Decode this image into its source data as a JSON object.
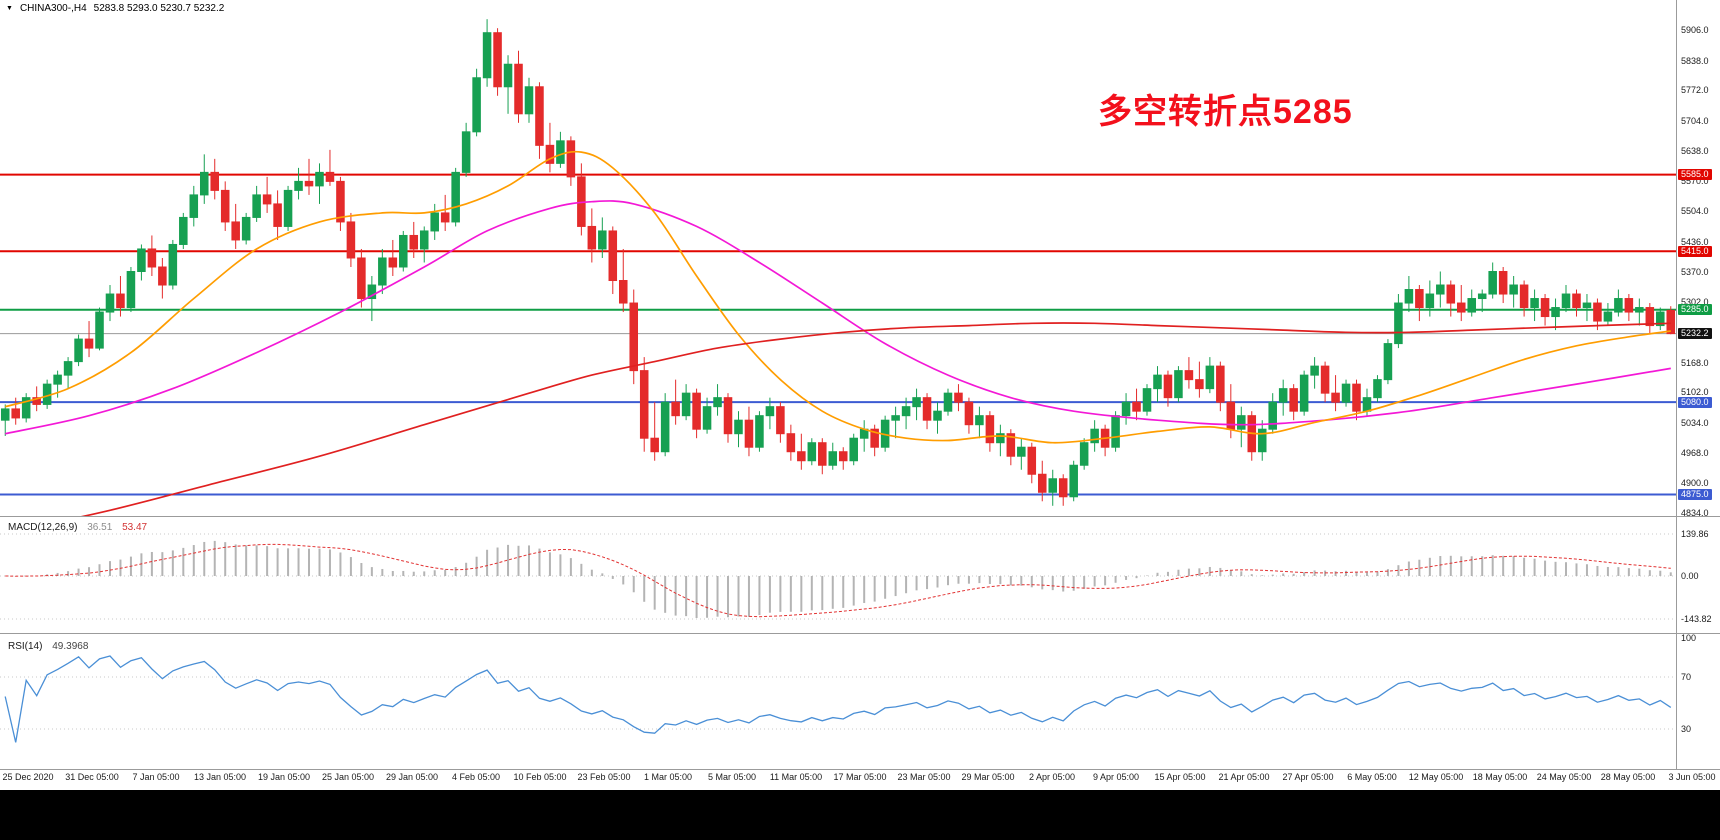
{
  "symbol_info": {
    "symbol_timeframe": "CHINA300-,H4",
    "ohlc_text": "5283.8 5293.0 5230.7 5232.2"
  },
  "annotation": {
    "text": "多空转折点5285",
    "color": "#f3101c"
  },
  "chart_data": {
    "type": "candlestick",
    "symbol": "CHINA300-",
    "timeframe": "H4",
    "ohlc_current": {
      "open": 5283.8,
      "high": 5293.0,
      "low": 5230.7,
      "close": 5232.2
    },
    "colors": {
      "up": "#17a052",
      "down": "#e42b2b",
      "ma_fast": "#ff9d00",
      "ma_mid": "#f318d6",
      "ma_slow": "#e02020",
      "rsi_line": "#4a8fd6",
      "macd_hist": "#b4b4b4",
      "macd_signal": "#e23333"
    },
    "y_axis": {
      "range": [
        4834.0,
        5906.0
      ],
      "ticks": [
        "5906.0",
        "5838.0",
        "5772.0",
        "5704.0",
        "5638.0",
        "5570.0",
        "5504.0",
        "5436.0",
        "5370.0",
        "5302.0",
        "5168.0",
        "5102.0",
        "5034.0",
        "4968.0",
        "4900.0",
        "4834.0"
      ]
    },
    "x_axis": {
      "labels": [
        "25 Dec 2020",
        "31 Dec 05:00",
        "7 Jan 05:00",
        "13 Jan 05:00",
        "19 Jan 05:00",
        "25 Jan 05:00",
        "29 Jan 05:00",
        "4 Feb 05:00",
        "10 Feb 05:00",
        "23 Feb 05:00",
        "1 Mar 05:00",
        "5 Mar 05:00",
        "11 Mar 05:00",
        "17 Mar 05:00",
        "23 Mar 05:00",
        "29 Mar 05:00",
        "2 Apr 05:00",
        "9 Apr 05:00",
        "15 Apr 05:00",
        "21 Apr 05:00",
        "27 Apr 05:00",
        "6 May 05:00",
        "12 May 05:00",
        "18 May 05:00",
        "24 May 05:00",
        "28 May 05:00",
        "3 Jun 05:00"
      ]
    },
    "levels": [
      {
        "price": 5585.0,
        "label": "5585.0",
        "color": "#e10600",
        "width": 2
      },
      {
        "price": 5415.0,
        "label": "5415.0",
        "color": "#e10600",
        "width": 2
      },
      {
        "price": 5285.0,
        "label": "5285.0",
        "color": "#0f9d45",
        "width": 2
      },
      {
        "price": 5080.0,
        "label": "5080.0",
        "color": "#3c5bd2",
        "width": 2
      },
      {
        "price": 4875.0,
        "label": "4875.0",
        "color": "#3c5bd2",
        "width": 2
      }
    ],
    "current_price": {
      "value": 5232.2,
      "label": "5232.2",
      "line_color": "#9a9a9a",
      "tag_color": "#111111"
    },
    "candles": [
      [
        5040,
        5075,
        5005,
        5065
      ],
      [
        5065,
        5090,
        5030,
        5045
      ],
      [
        5045,
        5100,
        5035,
        5090
      ],
      [
        5090,
        5115,
        5060,
        5075
      ],
      [
        5075,
        5130,
        5065,
        5120
      ],
      [
        5120,
        5150,
        5090,
        5140
      ],
      [
        5140,
        5180,
        5110,
        5170
      ],
      [
        5170,
        5230,
        5160,
        5220
      ],
      [
        5220,
        5260,
        5180,
        5200
      ],
      [
        5200,
        5290,
        5195,
        5280
      ],
      [
        5280,
        5340,
        5260,
        5320
      ],
      [
        5320,
        5360,
        5270,
        5290
      ],
      [
        5290,
        5380,
        5280,
        5370
      ],
      [
        5370,
        5430,
        5350,
        5420
      ],
      [
        5420,
        5450,
        5360,
        5380
      ],
      [
        5380,
        5400,
        5310,
        5340
      ],
      [
        5340,
        5440,
        5330,
        5430
      ],
      [
        5430,
        5500,
        5420,
        5490
      ],
      [
        5490,
        5560,
        5470,
        5540
      ],
      [
        5540,
        5630,
        5520,
        5590
      ],
      [
        5590,
        5620,
        5530,
        5550
      ],
      [
        5550,
        5570,
        5460,
        5480
      ],
      [
        5480,
        5520,
        5420,
        5440
      ],
      [
        5440,
        5500,
        5430,
        5490
      ],
      [
        5490,
        5560,
        5480,
        5540
      ],
      [
        5540,
        5580,
        5500,
        5520
      ],
      [
        5520,
        5550,
        5440,
        5470
      ],
      [
        5470,
        5560,
        5460,
        5550
      ],
      [
        5550,
        5600,
        5530,
        5570
      ],
      [
        5570,
        5620,
        5540,
        5560
      ],
      [
        5560,
        5610,
        5520,
        5590
      ],
      [
        5590,
        5640,
        5560,
        5570
      ],
      [
        5570,
        5580,
        5460,
        5480
      ],
      [
        5480,
        5500,
        5380,
        5400
      ],
      [
        5400,
        5420,
        5290,
        5310
      ],
      [
        5310,
        5360,
        5260,
        5340
      ],
      [
        5340,
        5420,
        5320,
        5400
      ],
      [
        5400,
        5440,
        5360,
        5380
      ],
      [
        5380,
        5460,
        5370,
        5450
      ],
      [
        5450,
        5480,
        5400,
        5420
      ],
      [
        5420,
        5470,
        5390,
        5460
      ],
      [
        5460,
        5520,
        5440,
        5500
      ],
      [
        5500,
        5540,
        5460,
        5480
      ],
      [
        5480,
        5600,
        5470,
        5590
      ],
      [
        5590,
        5700,
        5580,
        5680
      ],
      [
        5680,
        5820,
        5670,
        5800
      ],
      [
        5800,
        5930,
        5780,
        5900
      ],
      [
        5900,
        5910,
        5760,
        5780
      ],
      [
        5780,
        5850,
        5720,
        5830
      ],
      [
        5830,
        5860,
        5700,
        5720
      ],
      [
        5720,
        5800,
        5700,
        5780
      ],
      [
        5780,
        5790,
        5620,
        5650
      ],
      [
        5650,
        5700,
        5590,
        5610
      ],
      [
        5610,
        5680,
        5600,
        5660
      ],
      [
        5660,
        5670,
        5560,
        5580
      ],
      [
        5580,
        5610,
        5450,
        5470
      ],
      [
        5470,
        5510,
        5390,
        5420
      ],
      [
        5420,
        5490,
        5400,
        5460
      ],
      [
        5460,
        5470,
        5320,
        5350
      ],
      [
        5350,
        5420,
        5280,
        5300
      ],
      [
        5300,
        5330,
        5120,
        5150
      ],
      [
        5150,
        5180,
        4970,
        5000
      ],
      [
        5000,
        5080,
        4950,
        4970
      ],
      [
        4970,
        5100,
        4960,
        5080
      ],
      [
        5080,
        5130,
        5030,
        5050
      ],
      [
        5050,
        5120,
        5040,
        5100
      ],
      [
        5100,
        5110,
        5000,
        5020
      ],
      [
        5020,
        5090,
        5010,
        5070
      ],
      [
        5070,
        5120,
        5050,
        5090
      ],
      [
        5090,
        5100,
        4990,
        5010
      ],
      [
        5010,
        5060,
        4980,
        5040
      ],
      [
        5040,
        5070,
        4960,
        4980
      ],
      [
        4980,
        5060,
        4970,
        5050
      ],
      [
        5050,
        5090,
        5020,
        5070
      ],
      [
        5070,
        5080,
        4990,
        5010
      ],
      [
        5010,
        5030,
        4950,
        4970
      ],
      [
        4970,
        5010,
        4930,
        4950
      ],
      [
        4950,
        5000,
        4940,
        4990
      ],
      [
        4990,
        5000,
        4920,
        4940
      ],
      [
        4940,
        4990,
        4930,
        4970
      ],
      [
        4970,
        4980,
        4930,
        4950
      ],
      [
        4950,
        5010,
        4940,
        5000
      ],
      [
        5000,
        5040,
        4970,
        5020
      ],
      [
        5020,
        5030,
        4960,
        4980
      ],
      [
        4980,
        5050,
        4970,
        5040
      ],
      [
        5040,
        5070,
        5000,
        5050
      ],
      [
        5050,
        5090,
        5020,
        5070
      ],
      [
        5070,
        5110,
        5040,
        5090
      ],
      [
        5090,
        5100,
        5020,
        5040
      ],
      [
        5040,
        5080,
        5010,
        5060
      ],
      [
        5060,
        5110,
        5050,
        5100
      ],
      [
        5100,
        5120,
        5060,
        5080
      ],
      [
        5080,
        5090,
        5010,
        5030
      ],
      [
        5030,
        5070,
        5000,
        5050
      ],
      [
        5050,
        5060,
        4970,
        4990
      ],
      [
        4990,
        5030,
        4960,
        5010
      ],
      [
        5010,
        5020,
        4940,
        4960
      ],
      [
        4960,
        5000,
        4930,
        4980
      ],
      [
        4980,
        4990,
        4900,
        4920
      ],
      [
        4920,
        4950,
        4860,
        4880
      ],
      [
        4880,
        4930,
        4850,
        4910
      ],
      [
        4910,
        4920,
        4850,
        4870
      ],
      [
        4870,
        4950,
        4860,
        4940
      ],
      [
        4940,
        5000,
        4930,
        4990
      ],
      [
        4990,
        5040,
        4970,
        5020
      ],
      [
        5020,
        5030,
        4960,
        4980
      ],
      [
        4980,
        5060,
        4970,
        5050
      ],
      [
        5050,
        5100,
        5030,
        5080
      ],
      [
        5080,
        5110,
        5040,
        5060
      ],
      [
        5060,
        5120,
        5050,
        5110
      ],
      [
        5110,
        5160,
        5080,
        5140
      ],
      [
        5140,
        5150,
        5070,
        5090
      ],
      [
        5090,
        5160,
        5080,
        5150
      ],
      [
        5150,
        5180,
        5110,
        5130
      ],
      [
        5130,
        5170,
        5090,
        5110
      ],
      [
        5110,
        5180,
        5100,
        5160
      ],
      [
        5160,
        5170,
        5060,
        5080
      ],
      [
        5080,
        5120,
        5000,
        5020
      ],
      [
        5020,
        5070,
        4980,
        5050
      ],
      [
        5050,
        5060,
        4950,
        4970
      ],
      [
        4970,
        5040,
        4950,
        5020
      ],
      [
        5020,
        5100,
        5010,
        5080
      ],
      [
        5080,
        5130,
        5050,
        5110
      ],
      [
        5110,
        5120,
        5040,
        5060
      ],
      [
        5060,
        5150,
        5050,
        5140
      ],
      [
        5140,
        5180,
        5110,
        5160
      ],
      [
        5160,
        5170,
        5080,
        5100
      ],
      [
        5100,
        5140,
        5060,
        5080
      ],
      [
        5080,
        5130,
        5070,
        5120
      ],
      [
        5120,
        5130,
        5040,
        5060
      ],
      [
        5060,
        5110,
        5050,
        5090
      ],
      [
        5090,
        5140,
        5080,
        5130
      ],
      [
        5130,
        5220,
        5120,
        5210
      ],
      [
        5210,
        5320,
        5200,
        5300
      ],
      [
        5300,
        5360,
        5280,
        5330
      ],
      [
        5330,
        5340,
        5260,
        5290
      ],
      [
        5290,
        5350,
        5270,
        5320
      ],
      [
        5320,
        5370,
        5290,
        5340
      ],
      [
        5340,
        5350,
        5270,
        5300
      ],
      [
        5300,
        5340,
        5260,
        5280
      ],
      [
        5280,
        5330,
        5270,
        5310
      ],
      [
        5310,
        5330,
        5280,
        5320
      ],
      [
        5320,
        5390,
        5310,
        5370
      ],
      [
        5370,
        5380,
        5300,
        5320
      ],
      [
        5320,
        5360,
        5290,
        5340
      ],
      [
        5340,
        5350,
        5270,
        5290
      ],
      [
        5290,
        5330,
        5260,
        5310
      ],
      [
        5310,
        5320,
        5250,
        5270
      ],
      [
        5270,
        5310,
        5240,
        5290
      ],
      [
        5290,
        5340,
        5280,
        5320
      ],
      [
        5320,
        5330,
        5270,
        5290
      ],
      [
        5290,
        5320,
        5260,
        5300
      ],
      [
        5300,
        5310,
        5240,
        5260
      ],
      [
        5260,
        5300,
        5250,
        5280
      ],
      [
        5280,
        5330,
        5270,
        5310
      ],
      [
        5310,
        5320,
        5260,
        5280
      ],
      [
        5280,
        5310,
        5250,
        5290
      ],
      [
        5290,
        5300,
        5230,
        5250
      ],
      [
        5250,
        5290,
        5240,
        5280
      ],
      [
        5283.8,
        5293.0,
        5230.7,
        5232.2
      ]
    ],
    "moving_averages": [
      {
        "name": "ma-mid-magenta",
        "color": "#f318d6",
        "points": [
          [
            0,
            5010
          ],
          [
            8,
            5050
          ],
          [
            16,
            5110
          ],
          [
            24,
            5190
          ],
          [
            32,
            5280
          ],
          [
            40,
            5380
          ],
          [
            46,
            5460
          ],
          [
            52,
            5510
          ],
          [
            56,
            5525
          ],
          [
            60,
            5520
          ],
          [
            66,
            5470
          ],
          [
            72,
            5390
          ],
          [
            78,
            5300
          ],
          [
            84,
            5210
          ],
          [
            90,
            5140
          ],
          [
            96,
            5090
          ],
          [
            102,
            5060
          ],
          [
            110,
            5040
          ],
          [
            118,
            5030
          ],
          [
            126,
            5040
          ],
          [
            134,
            5060
          ],
          [
            142,
            5090
          ],
          [
            150,
            5120
          ],
          [
            159,
            5155
          ]
        ]
      },
      {
        "name": "ma-fast-orange",
        "color": "#ff9d00",
        "points": [
          [
            0,
            5070
          ],
          [
            6,
            5110
          ],
          [
            12,
            5190
          ],
          [
            18,
            5310
          ],
          [
            24,
            5420
          ],
          [
            30,
            5480
          ],
          [
            36,
            5500
          ],
          [
            40,
            5500
          ],
          [
            44,
            5520
          ],
          [
            48,
            5560
          ],
          [
            52,
            5620
          ],
          [
            55,
            5635
          ],
          [
            58,
            5600
          ],
          [
            62,
            5500
          ],
          [
            66,
            5360
          ],
          [
            70,
            5230
          ],
          [
            74,
            5130
          ],
          [
            78,
            5060
          ],
          [
            82,
            5020
          ],
          [
            86,
            5000
          ],
          [
            90,
            4995
          ],
          [
            95,
            5005
          ],
          [
            100,
            4990
          ],
          [
            105,
            5000
          ],
          [
            110,
            5015
          ],
          [
            115,
            5025
          ],
          [
            120,
            5010
          ],
          [
            125,
            5035
          ],
          [
            130,
            5060
          ],
          [
            135,
            5095
          ],
          [
            140,
            5135
          ],
          [
            145,
            5175
          ],
          [
            150,
            5205
          ],
          [
            155,
            5225
          ],
          [
            159,
            5238
          ]
        ]
      },
      {
        "name": "ma-slow-red",
        "color": "#e02020",
        "points": [
          [
            0,
            4790
          ],
          [
            10,
            4840
          ],
          [
            20,
            4900
          ],
          [
            30,
            4960
          ],
          [
            40,
            5030
          ],
          [
            50,
            5100
          ],
          [
            56,
            5140
          ],
          [
            62,
            5170
          ],
          [
            68,
            5200
          ],
          [
            74,
            5220
          ],
          [
            80,
            5235
          ],
          [
            86,
            5245
          ],
          [
            92,
            5250
          ],
          [
            98,
            5255
          ],
          [
            104,
            5255
          ],
          [
            110,
            5250
          ],
          [
            116,
            5245
          ],
          [
            122,
            5240
          ],
          [
            128,
            5235
          ],
          [
            134,
            5235
          ],
          [
            140,
            5240
          ],
          [
            146,
            5245
          ],
          [
            152,
            5250
          ],
          [
            159,
            5255
          ]
        ]
      }
    ],
    "macd": {
      "label": "MACD(12,26,9)",
      "value_main": "36.51",
      "value_signal": "53.47",
      "params": [
        12,
        26,
        9
      ],
      "axis_labels": [
        "139.86",
        "0.00",
        "-143.82"
      ],
      "scale_max": 139.86,
      "scale_min": -143.82
    },
    "rsi": {
      "label": "RSI(14)",
      "value": "49.3968",
      "period": 14,
      "axis_labels": [
        "100",
        "70",
        "30"
      ],
      "levels": [
        100,
        70,
        30
      ]
    }
  }
}
